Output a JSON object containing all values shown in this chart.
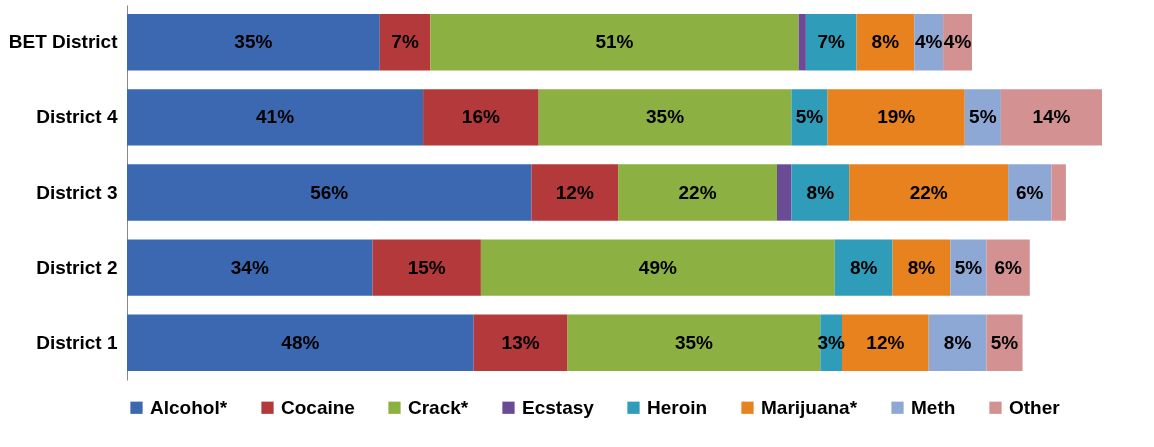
{
  "chart_data": {
    "type": "bar",
    "orientation": "horizontal",
    "stacked": true,
    "legend": "bottom",
    "categories": [
      "BET District",
      "District 4",
      "District 3",
      "District 2",
      "District 1"
    ],
    "series": [
      {
        "name": "Alcohol*",
        "color": "#3b68b0",
        "values": [
          35,
          41,
          56,
          34,
          48
        ],
        "value_labels": [
          "35%",
          "41%",
          "56%",
          "34%",
          "48%"
        ]
      },
      {
        "name": "Cocaine",
        "color": "#b3393a",
        "values": [
          7,
          16,
          12,
          15,
          13
        ],
        "value_labels": [
          "7%",
          "16%",
          "12%",
          "15%",
          "13%"
        ]
      },
      {
        "name": "Crack*",
        "color": "#8db042",
        "values": [
          51,
          35,
          22,
          49,
          35
        ],
        "value_labels": [
          "51%",
          "35%",
          "22%",
          "49%",
          "35%"
        ]
      },
      {
        "name": "Ecstasy",
        "color": "#6b4b96",
        "values": [
          1,
          null,
          2,
          null,
          null
        ],
        "value_labels": [
          null,
          null,
          null,
          null,
          null
        ]
      },
      {
        "name": "Heroin",
        "color": "#2f9cb9",
        "values": [
          7,
          5,
          8,
          8,
          3
        ],
        "value_labels": [
          "7%",
          "5%",
          "8%",
          "8%",
          "3%"
        ]
      },
      {
        "name": "Marijuana*",
        "color": "#e8821f",
        "values": [
          8,
          19,
          22,
          8,
          12
        ],
        "value_labels": [
          "8%",
          "19%",
          "22%",
          "8%",
          "12%"
        ]
      },
      {
        "name": "Meth",
        "color": "#8ea8d5",
        "values": [
          4,
          5,
          6,
          5,
          8
        ],
        "value_labels": [
          "4%",
          "5%",
          "6%",
          "5%",
          "8%"
        ]
      },
      {
        "name": "Other",
        "color": "#d39192",
        "values": [
          4,
          14,
          2,
          6,
          5
        ],
        "value_labels": [
          "4%",
          "14%",
          null,
          "6%",
          "5%"
        ]
      }
    ]
  }
}
